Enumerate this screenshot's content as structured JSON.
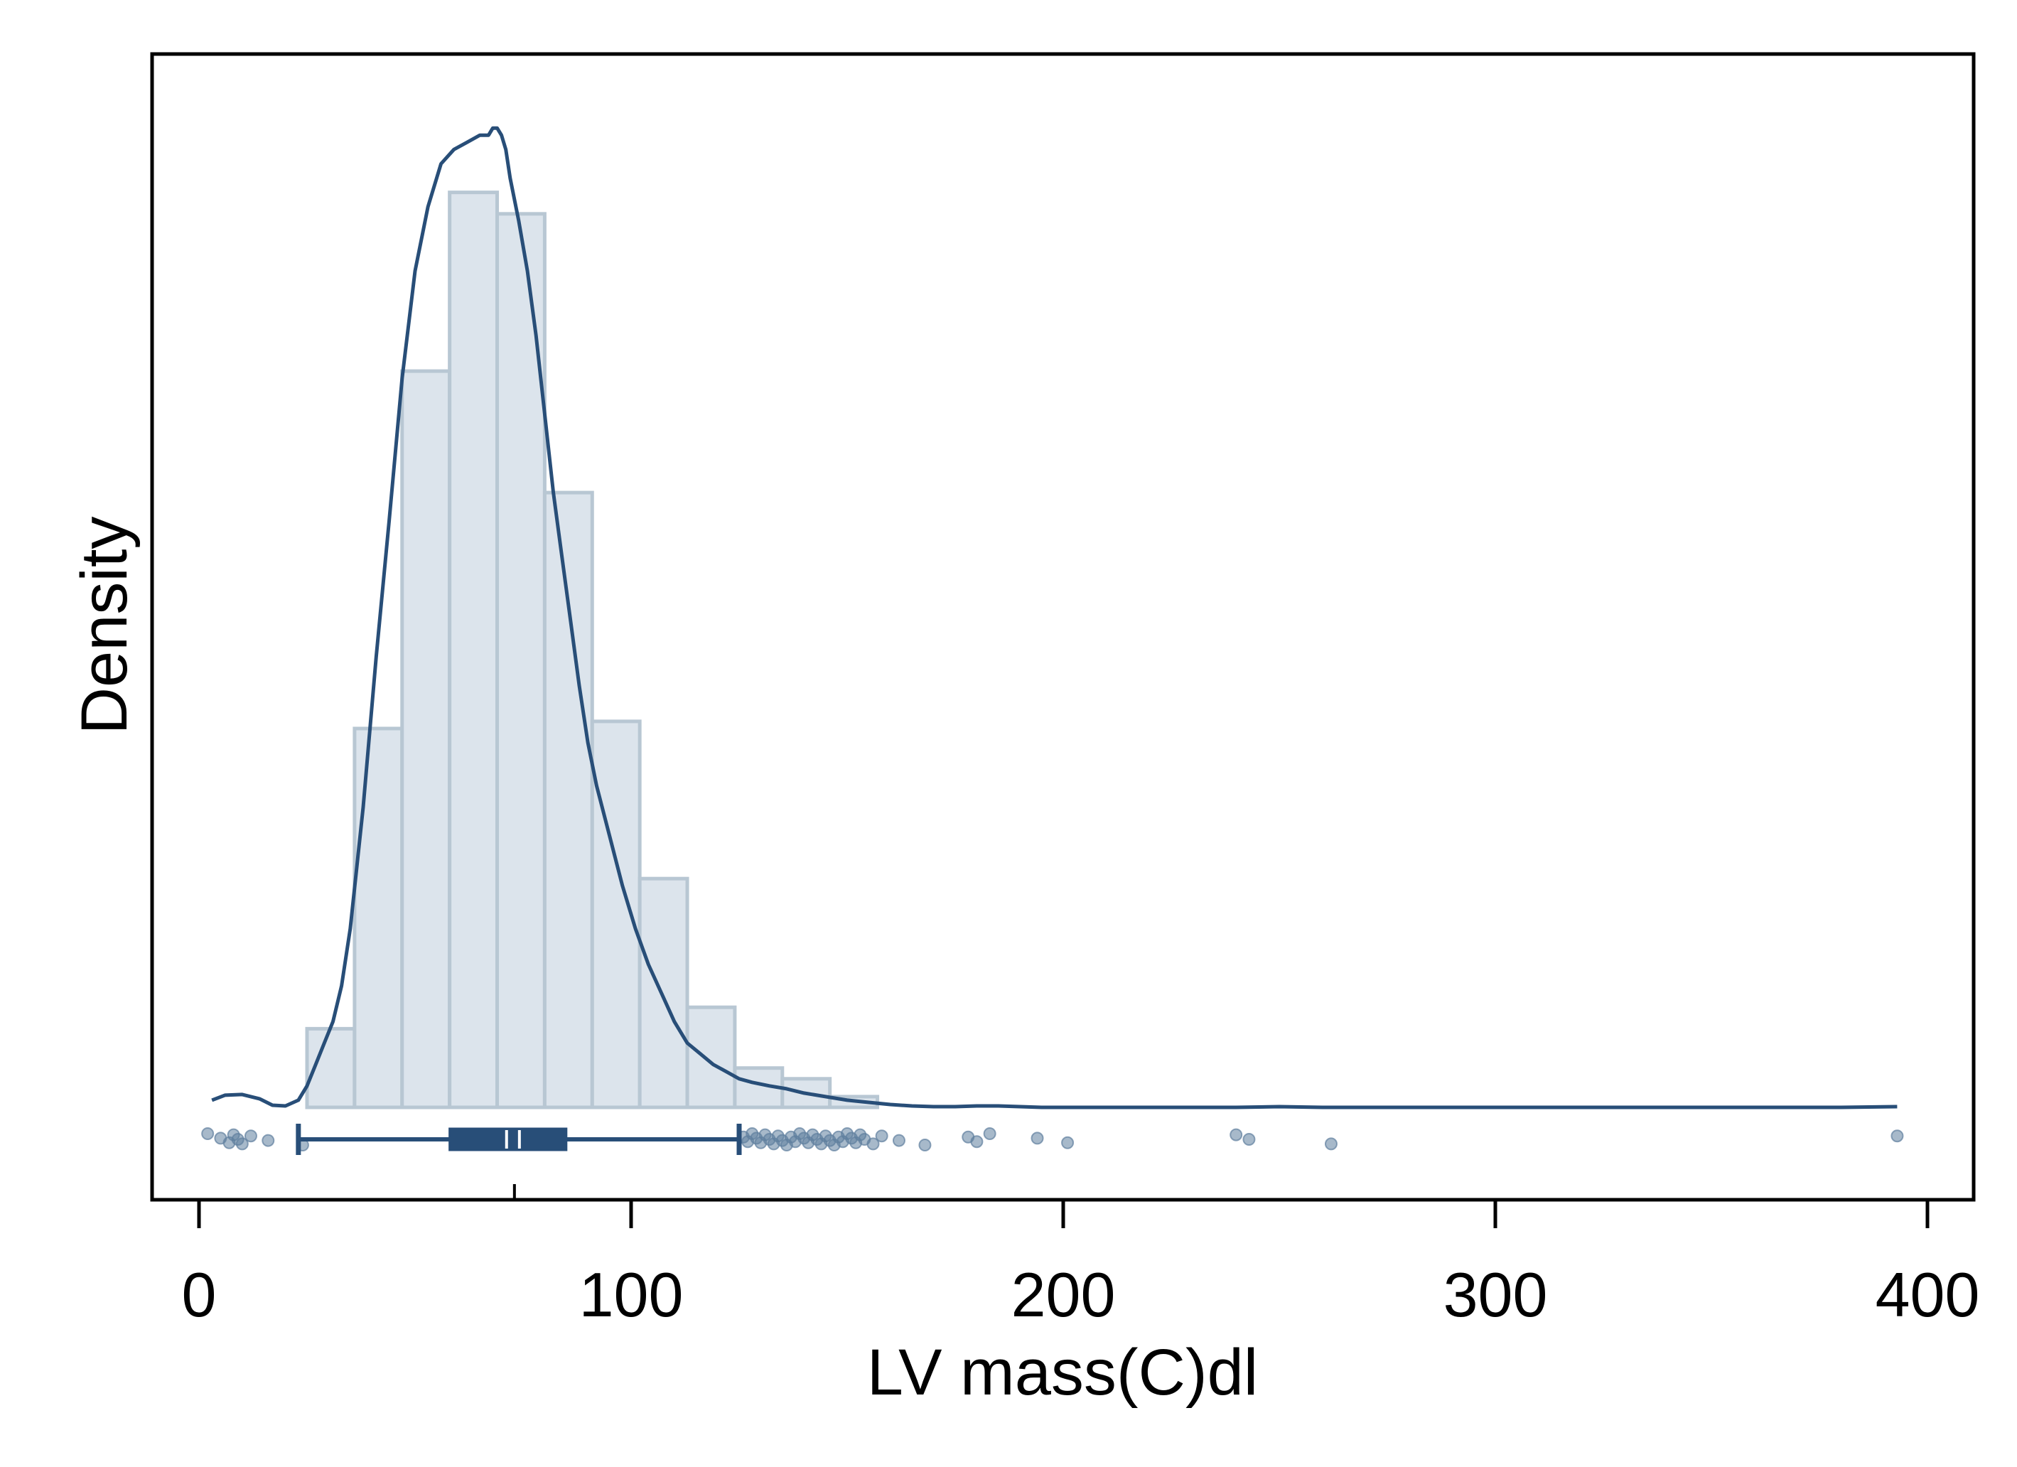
{
  "chart_data": {
    "type": "histogram",
    "xlabel": "LV mass(C)dl",
    "ylabel": "Density",
    "xlim": [
      -10,
      412
    ],
    "x_ticks": [
      0,
      100,
      200,
      300,
      400
    ],
    "y_ticks": [],
    "histogram": {
      "bin_edges": [
        25,
        36,
        47,
        58,
        69,
        80,
        91,
        102,
        113,
        124,
        135,
        146,
        157
      ],
      "heights": [
        0.0011,
        0.0053,
        0.0103,
        0.0128,
        0.0125,
        0.0086,
        0.0054,
        0.0032,
        0.0014,
        0.00055,
        0.0004,
        0.00015
      ],
      "color": "#dce4ec",
      "edge_color": "#b8c7d3"
    },
    "density_curve": {
      "color": "#284e78",
      "x": [
        3,
        6,
        10,
        14,
        17,
        20,
        23,
        25,
        27,
        29,
        31,
        33,
        35,
        38,
        41,
        44,
        47,
        50,
        53,
        56,
        59,
        62,
        65,
        67,
        68,
        69,
        70,
        71,
        72,
        74,
        76,
        78,
        80,
        82,
        84,
        86,
        88,
        90,
        92,
        95,
        98,
        101,
        104,
        107,
        110,
        113,
        116,
        119,
        122,
        125,
        128,
        132,
        136,
        140,
        145,
        150,
        155,
        160,
        165,
        170,
        175,
        180,
        185,
        190,
        195,
        200,
        210,
        220,
        230,
        240,
        250,
        260,
        270,
        280,
        290,
        300,
        320,
        340,
        360,
        380,
        393
      ],
      "y": [
        0.0001,
        0.00017,
        0.00018,
        0.00012,
        3e-05,
        2e-05,
        0.0001,
        0.0003,
        0.0006,
        0.0009,
        0.0012,
        0.0017,
        0.0025,
        0.0042,
        0.0063,
        0.0082,
        0.0102,
        0.0117,
        0.0126,
        0.0132,
        0.0134,
        0.0135,
        0.0136,
        0.0136,
        0.0137,
        0.0137,
        0.0136,
        0.0134,
        0.013,
        0.0124,
        0.0117,
        0.0108,
        0.0097,
        0.0086,
        0.0077,
        0.0068,
        0.0059,
        0.0051,
        0.0045,
        0.0038,
        0.0031,
        0.0025,
        0.002,
        0.0016,
        0.0012,
        0.0009,
        0.00075,
        0.0006,
        0.0005,
        0.0004,
        0.00035,
        0.0003,
        0.00026,
        0.0002,
        0.00015,
        0.0001,
        7e-05,
        4e-05,
        2e-05,
        1e-05,
        1e-05,
        2e-05,
        2e-05,
        1e-05,
        0.0,
        0.0,
        0.0,
        0.0,
        0.0,
        0.0,
        1e-05,
        0.0,
        0.0,
        0.0,
        0.0,
        0.0,
        0.0,
        0.0,
        0.0,
        0.0,
        1e-05
      ]
    },
    "y_max": 0.014,
    "boxplot": {
      "color": "#284e78",
      "whisker_low": 23,
      "q1": 58,
      "median": 72,
      "q3": 85,
      "whisker_high": 125,
      "mean_marker": 73
    },
    "jitter_points": {
      "color": "#5f7f9e",
      "x": [
        2,
        5,
        7,
        8,
        9,
        10,
        12,
        16,
        24,
        126,
        127,
        128,
        129,
        130,
        131,
        132,
        133,
        134,
        135,
        136,
        137,
        138,
        139,
        140,
        141,
        142,
        143,
        144,
        145,
        146,
        147,
        148,
        149,
        150,
        151,
        152,
        153,
        154,
        156,
        158,
        162,
        168,
        178,
        180,
        183,
        194,
        201,
        240,
        243,
        262,
        393
      ]
    }
  }
}
